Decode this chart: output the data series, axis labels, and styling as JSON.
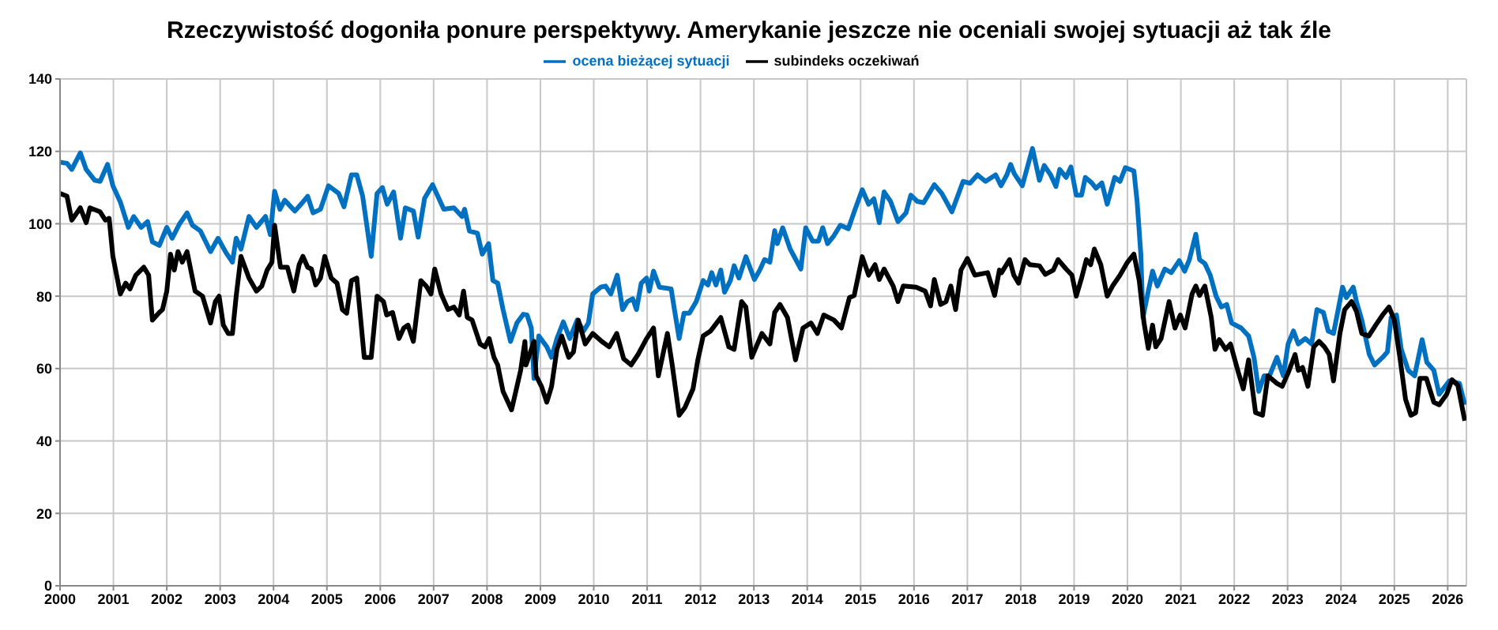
{
  "chart_data": {
    "type": "line",
    "title": "Rzeczywistość dogoniła ponure perspektywy. Amerykanie jeszcze nie oceniali swojej sytuacji aż tak źle",
    "xlim": [
      2000,
      2026.35
    ],
    "xticks": [
      2000,
      2001,
      2002,
      2003,
      2004,
      2005,
      2006,
      2007,
      2008,
      2009,
      2010,
      2011,
      2012,
      2013,
      2014,
      2015,
      2016,
      2017,
      2018,
      2019,
      2020,
      2021,
      2022,
      2023,
      2024,
      2025,
      2026
    ],
    "ylim": [
      0,
      140
    ],
    "yticks": [
      0,
      20,
      40,
      60,
      80,
      100,
      120,
      140
    ],
    "grid": true,
    "legend": "top",
    "marker": "none",
    "line_style": "solid",
    "series": [
      {
        "name": "ocena bieżącej sytuacji",
        "color": "#0070c0",
        "x": [
          2000.0,
          2000.13,
          2000.22,
          2000.38,
          2000.49,
          2000.65,
          2000.75,
          2000.89,
          2000.99,
          2001.13,
          2001.28,
          2001.38,
          2001.52,
          2001.64,
          2001.73,
          2001.86,
          2002.0,
          2002.1,
          2002.24,
          2002.38,
          2002.48,
          2002.63,
          2002.82,
          2002.96,
          2003.11,
          2003.23,
          2003.3,
          2003.39,
          2003.54,
          2003.68,
          2003.85,
          2003.94,
          2004.02,
          2004.12,
          2004.21,
          2004.4,
          2004.55,
          2004.64,
          2004.74,
          2004.88,
          2005.03,
          2005.22,
          2005.32,
          2005.46,
          2005.56,
          2005.67,
          2005.83,
          2005.94,
          2006.04,
          2006.13,
          2006.25,
          2006.38,
          2006.47,
          2006.62,
          2006.71,
          2006.83,
          2006.98,
          2007.19,
          2007.38,
          2007.53,
          2007.58,
          2007.67,
          2007.82,
          2007.91,
          2008.03,
          2008.11,
          2008.2,
          2008.3,
          2008.44,
          2008.56,
          2008.68,
          2008.75,
          2008.83,
          2008.88,
          2008.97,
          2009.12,
          2009.21,
          2009.31,
          2009.43,
          2009.55,
          2009.69,
          2009.81,
          2009.9,
          2009.98,
          2010.13,
          2010.22,
          2010.32,
          2010.44,
          2010.54,
          2010.63,
          2010.73,
          2010.8,
          2010.89,
          2010.99,
          2011.04,
          2011.12,
          2011.23,
          2011.45,
          2011.52,
          2011.6,
          2011.69,
          2011.79,
          2011.92,
          2012.05,
          2012.14,
          2012.21,
          2012.29,
          2012.38,
          2012.45,
          2012.56,
          2012.63,
          2012.72,
          2012.85,
          2013.01,
          2013.11,
          2013.2,
          2013.3,
          2013.39,
          2013.44,
          2013.54,
          2013.68,
          2013.88,
          2013.97,
          2014.1,
          2014.21,
          2014.29,
          2014.38,
          2014.5,
          2014.62,
          2014.77,
          2014.88,
          2015.03,
          2015.15,
          2015.25,
          2015.35,
          2015.44,
          2015.56,
          2015.7,
          2015.85,
          2015.94,
          2016.06,
          2016.18,
          2016.38,
          2016.52,
          2016.71,
          2016.92,
          2017.05,
          2017.19,
          2017.34,
          2017.53,
          2017.63,
          2017.74,
          2017.81,
          2017.88,
          2018.03,
          2018.22,
          2018.35,
          2018.44,
          2018.56,
          2018.66,
          2018.73,
          2018.85,
          2018.94,
          2019.04,
          2019.14,
          2019.21,
          2019.33,
          2019.41,
          2019.52,
          2019.62,
          2019.76,
          2019.86,
          2019.96,
          2020.12,
          2020.18,
          2020.25,
          2020.29,
          2020.39,
          2020.47,
          2020.56,
          2020.7,
          2020.82,
          2020.97,
          2021.07,
          2021.16,
          2021.28,
          2021.35,
          2021.45,
          2021.55,
          2021.66,
          2021.76,
          2021.86,
          2021.95,
          2022.13,
          2022.27,
          2022.37,
          2022.46,
          2022.56,
          2022.66,
          2022.8,
          2022.92,
          2023.01,
          2023.11,
          2023.2,
          2023.33,
          2023.45,
          2023.55,
          2023.67,
          2023.76,
          2023.86,
          2024.03,
          2024.1,
          2024.23,
          2024.29,
          2024.39,
          2024.53,
          2024.63,
          2024.78,
          2024.87,
          2024.94,
          2025.04,
          2025.13,
          2025.26,
          2025.38,
          2025.52,
          2025.61,
          2025.74,
          2025.84,
          2026.03,
          2026.22,
          2026.32
        ],
        "values": [
          117,
          116.7,
          115,
          119.6,
          115,
          112,
          111.7,
          116.4,
          110.5,
          106,
          99,
          102,
          99,
          100.6,
          95,
          94,
          99,
          96,
          100,
          103,
          99.6,
          98,
          92.3,
          96,
          92,
          89.4,
          96,
          93,
          102,
          99,
          102,
          97,
          109,
          104,
          106.5,
          103.5,
          106,
          107.6,
          103,
          104,
          110.5,
          108.4,
          104.7,
          113.5,
          113.5,
          107.6,
          91,
          108.4,
          110,
          105.4,
          108.8,
          96,
          104.4,
          103.5,
          96.3,
          107,
          110.8,
          104,
          104.4,
          102,
          104,
          98,
          97.4,
          91.6,
          94.5,
          84.3,
          83.6,
          76.3,
          67.5,
          72.6,
          75,
          74.8,
          71.2,
          57.3,
          69,
          66,
          63.1,
          68.3,
          72.9,
          68.3,
          73.4,
          70.4,
          72.6,
          80.6,
          82.5,
          82.8,
          80.6,
          85.8,
          76.3,
          78.5,
          79.3,
          76.3,
          83.6,
          85,
          81.4,
          86.9,
          82.5,
          82,
          75.5,
          68.3,
          75.3,
          75.3,
          78.5,
          84.3,
          83.1,
          86.5,
          83.1,
          87.2,
          81.1,
          84.3,
          88.4,
          85,
          90.9,
          84.6,
          87.2,
          90.1,
          89.4,
          98.1,
          94.5,
          98.9,
          93,
          87.5,
          98.9,
          95.2,
          95.2,
          98.9,
          94.5,
          96.7,
          99.6,
          98.6,
          103.3,
          109.4,
          105.4,
          106.9,
          100.3,
          108.8,
          106.2,
          100.6,
          103,
          107.9,
          106.2,
          105.8,
          110.8,
          108.4,
          103.3,
          111.7,
          111.2,
          113.5,
          111.7,
          113.5,
          110.5,
          113.5,
          116.4,
          113.8,
          110.5,
          120.8,
          112,
          116.1,
          113.5,
          110.3,
          115,
          112.8,
          115.7,
          107.9,
          107.9,
          112.8,
          111.3,
          109.8,
          111.3,
          105.4,
          112.8,
          111.7,
          115.5,
          114.6,
          106.2,
          91.6,
          74.1,
          81.4,
          86.9,
          82.8,
          87.5,
          86.5,
          89.8,
          86.9,
          90.1,
          97.1,
          90.1,
          89,
          85.8,
          80,
          77,
          77.7,
          72.6,
          71.2,
          69,
          63.1,
          53.7,
          58,
          58,
          63.1,
          58,
          66.8,
          70.4,
          66.8,
          68.3,
          66.8,
          76.3,
          75.5,
          70.4,
          69.7,
          82.5,
          79.6,
          82.5,
          78.5,
          73.4,
          63.9,
          61,
          63.1,
          64.6,
          74.1,
          74.8,
          65.3,
          59.5,
          58,
          68,
          61.7,
          59.5,
          52.9,
          56.6,
          55.9,
          50
        ]
      },
      {
        "name": "subindeks oczekiwań",
        "color": "#000000",
        "x": [
          2000.0,
          2000.13,
          2000.22,
          2000.38,
          2000.49,
          2000.56,
          2000.75,
          2000.85,
          2000.92,
          2000.99,
          2001.13,
          2001.23,
          2001.31,
          2001.42,
          2001.57,
          2001.66,
          2001.73,
          2001.86,
          2001.92,
          2002.0,
          2002.07,
          2002.14,
          2002.21,
          2002.29,
          2002.38,
          2002.53,
          2002.67,
          2002.82,
          2002.91,
          2002.98,
          2003.06,
          2003.15,
          2003.23,
          2003.3,
          2003.39,
          2003.54,
          2003.68,
          2003.78,
          2003.88,
          2003.97,
          2004.02,
          2004.13,
          2004.26,
          2004.38,
          2004.48,
          2004.55,
          2004.64,
          2004.71,
          2004.79,
          2004.88,
          2004.96,
          2005.08,
          2005.19,
          2005.29,
          2005.37,
          2005.46,
          2005.56,
          2005.7,
          2005.83,
          2005.94,
          2006.06,
          2006.12,
          2006.23,
          2006.35,
          2006.44,
          2006.52,
          2006.62,
          2006.76,
          2006.86,
          2006.95,
          2007.02,
          2007.14,
          2007.27,
          2007.38,
          2007.48,
          2007.56,
          2007.63,
          2007.72,
          2007.87,
          2007.96,
          2008.04,
          2008.13,
          2008.2,
          2008.3,
          2008.46,
          2008.63,
          2008.71,
          2008.73,
          2008.88,
          2008.92,
          2009.02,
          2009.12,
          2009.21,
          2009.31,
          2009.4,
          2009.53,
          2009.62,
          2009.71,
          2009.84,
          2009.98,
          2010.15,
          2010.29,
          2010.43,
          2010.56,
          2010.7,
          2010.83,
          2010.99,
          2011.12,
          2011.21,
          2011.38,
          2011.47,
          2011.6,
          2011.71,
          2011.86,
          2011.95,
          2012.05,
          2012.19,
          2012.38,
          2012.53,
          2012.63,
          2012.77,
          2012.85,
          2012.96,
          2013.15,
          2013.3,
          2013.39,
          2013.49,
          2013.63,
          2013.78,
          2013.92,
          2014.07,
          2014.19,
          2014.31,
          2014.5,
          2014.64,
          2014.79,
          2014.88,
          2015.03,
          2015.15,
          2015.27,
          2015.35,
          2015.44,
          2015.61,
          2015.7,
          2015.8,
          2016.04,
          2016.21,
          2016.31,
          2016.38,
          2016.5,
          2016.6,
          2016.69,
          2016.78,
          2016.88,
          2017.0,
          2017.14,
          2017.38,
          2017.51,
          2017.6,
          2017.64,
          2017.79,
          2017.87,
          2017.96,
          2018.08,
          2018.17,
          2018.35,
          2018.46,
          2018.61,
          2018.7,
          2018.85,
          2018.96,
          2019.04,
          2019.14,
          2019.23,
          2019.31,
          2019.38,
          2019.5,
          2019.62,
          2019.72,
          2019.86,
          2020.0,
          2020.12,
          2020.22,
          2020.31,
          2020.39,
          2020.47,
          2020.53,
          2020.63,
          2020.78,
          2020.89,
          2020.99,
          2021.08,
          2021.21,
          2021.28,
          2021.35,
          2021.45,
          2021.57,
          2021.64,
          2021.72,
          2021.84,
          2021.93,
          2022.08,
          2022.17,
          2022.27,
          2022.4,
          2022.53,
          2022.63,
          2022.8,
          2022.9,
          2023.01,
          2023.14,
          2023.2,
          2023.28,
          2023.38,
          2023.49,
          2023.59,
          2023.69,
          2023.78,
          2023.86,
          2023.98,
          2024.07,
          2024.2,
          2024.29,
          2024.39,
          2024.52,
          2024.65,
          2024.78,
          2024.9,
          2025.0,
          2025.11,
          2025.21,
          2025.31,
          2025.4,
          2025.48,
          2025.6,
          2025.74,
          2025.84,
          2025.98,
          2026.08,
          2026.19,
          2026.27,
          2026.32
        ],
        "values": [
          108.4,
          107.6,
          101,
          104.4,
          100.3,
          104.4,
          103.3,
          101,
          101.5,
          91,
          80.6,
          83.6,
          82,
          85.8,
          88,
          85.8,
          73.4,
          75.5,
          76.3,
          81.4,
          91.6,
          87.2,
          92.3,
          89.4,
          92.3,
          81.4,
          80,
          72.6,
          78.5,
          80,
          72,
          69.7,
          69.7,
          80,
          91,
          85,
          81.4,
          82.8,
          87.2,
          89.4,
          99.6,
          88,
          88,
          81.4,
          88.7,
          91,
          88,
          87.5,
          83.1,
          85,
          91,
          85,
          83.6,
          76.3,
          75.3,
          84.3,
          85,
          63.1,
          63.1,
          80,
          78.5,
          74.8,
          75.5,
          68.3,
          71.2,
          72,
          67.5,
          84.3,
          82.8,
          80.6,
          87.5,
          80.6,
          76.3,
          77,
          74.8,
          81.4,
          74.1,
          73.4,
          66.8,
          66,
          68.3,
          63.1,
          61,
          53.7,
          48.6,
          59.5,
          67.5,
          61,
          67.5,
          58,
          55.1,
          50.7,
          55.1,
          65.3,
          69,
          63.1,
          64.6,
          73.4,
          66.8,
          69.7,
          67.5,
          66,
          69.7,
          62.7,
          61,
          63.9,
          68.3,
          71.2,
          58,
          69.7,
          61,
          47.1,
          49.3,
          54.4,
          62.4,
          69,
          70.4,
          74.1,
          66,
          65.3,
          78.5,
          77,
          63.1,
          69.7,
          66.8,
          75.5,
          77.7,
          74.1,
          62.4,
          71.2,
          72.6,
          69.7,
          74.8,
          73.4,
          71.2,
          79.6,
          80.2,
          90.9,
          85.8,
          88.7,
          84.6,
          87.5,
          82.8,
          78.5,
          82.8,
          82.5,
          81.4,
          77.3,
          84.6,
          77.7,
          78.5,
          82.8,
          76.3,
          87.2,
          90.4,
          85.8,
          86.5,
          80.2,
          87.2,
          86.5,
          90.1,
          85.8,
          83.6,
          90.1,
          88.7,
          88.4,
          86,
          87.2,
          90.1,
          87.5,
          85.8,
          80,
          85,
          90.1,
          88.7,
          93,
          88.7,
          80,
          82.8,
          85.8,
          89.4,
          91.6,
          84.3,
          72.6,
          65.6,
          72,
          66,
          68.3,
          78.5,
          71.2,
          74.8,
          71.2,
          80.6,
          82.8,
          80.2,
          82.8,
          74.1,
          65.3,
          68,
          65.3,
          66.8,
          58.8,
          54.4,
          62.4,
          47.8,
          47.1,
          58,
          55.9,
          55.1,
          58.8,
          63.9,
          59.5,
          60.3,
          55.1,
          66,
          67.5,
          66,
          63.9,
          56.6,
          69.7,
          76.3,
          78.5,
          75.8,
          69.7,
          69,
          72,
          74.8,
          77,
          73.4,
          62.4,
          51.5,
          47.1,
          47.8,
          57.3,
          57.3,
          50.7,
          50,
          52.9,
          56.9,
          55.4,
          49.3,
          45.6
        ]
      }
    ]
  }
}
